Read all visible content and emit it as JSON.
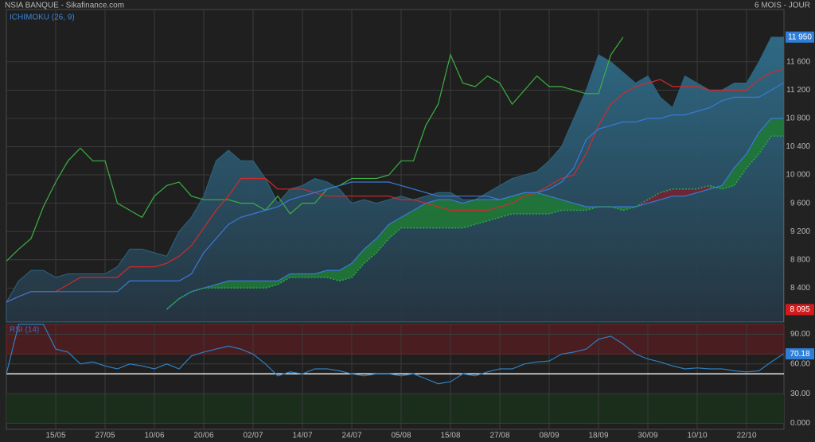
{
  "chart_data": [
    {
      "type": "ichimoku",
      "title": "NSIA BANQUE - Sikafinance.com",
      "period": "6 MOIS - JOUR",
      "label": "ICHIMOKU (26, 9)",
      "categories": [
        null,
        null,
        null,
        null,
        "15/05",
        null,
        null,
        null,
        "27/05",
        null,
        null,
        null,
        "10/06",
        null,
        null,
        null,
        "20/06",
        null,
        null,
        null,
        "02/07",
        null,
        null,
        null,
        "14/07",
        null,
        null,
        null,
        "24/07",
        null,
        null,
        null,
        "05/08",
        null,
        null,
        null,
        "15/08",
        null,
        null,
        null,
        "27/08",
        null,
        null,
        null,
        "08/09",
        null,
        null,
        null,
        "18/09",
        null,
        null,
        null,
        "30/09",
        null,
        null,
        null,
        "10/10",
        null,
        null,
        null,
        "22/10",
        null,
        null,
        null
      ],
      "ylim": [
        7920,
        12340
      ],
      "yticks": [
        {
          "value": 8400,
          "label": "8 400"
        },
        {
          "value": 8800,
          "label": "8 800"
        },
        {
          "value": 9200,
          "label": "9 200"
        },
        {
          "value": 9600,
          "label": "9 600"
        },
        {
          "value": 10000,
          "label": "10 000"
        },
        {
          "value": 10400,
          "label": "10 400"
        },
        {
          "value": 10800,
          "label": "10 800"
        },
        {
          "value": 11200,
          "label": "11 200"
        },
        {
          "value": 11600,
          "label": "11 600"
        }
      ],
      "grid": true,
      "area": {
        "color": "#2d6681",
        "values": [
          8200,
          8500,
          8650,
          8650,
          8550,
          8600,
          8600,
          8600,
          8600,
          8700,
          8950,
          8950,
          8900,
          8850,
          9200,
          9400,
          9700,
          10200,
          10350,
          10200,
          10200,
          9950,
          9600,
          9800,
          9850,
          9950,
          9900,
          9800,
          9600,
          9650,
          9600,
          9650,
          9700,
          9650,
          9700,
          9750,
          9750,
          9650,
          9650,
          9750,
          9850,
          9950,
          10000,
          10050,
          10200,
          10400,
          10800,
          11200,
          11700,
          11600,
          11450,
          11300,
          11400,
          11100,
          10950,
          11400,
          11300,
          11200,
          11200,
          11300,
          11300,
          11600,
          11950,
          11950
        ]
      },
      "cloud": {
        "up_color": "#1f7a34",
        "down_color": "#7a2030",
        "line_color": "#2ea84a",
        "a": [
          null,
          null,
          null,
          null,
          null,
          null,
          null,
          null,
          null,
          null,
          null,
          null,
          null,
          8100,
          8250,
          8350,
          8400,
          8450,
          8500,
          8500,
          8500,
          8500,
          8500,
          8600,
          8600,
          8600,
          8650,
          8650,
          8750,
          8950,
          9100,
          9300,
          9400,
          9500,
          9600,
          9650,
          9650,
          9600,
          9650,
          9650,
          9650,
          9700,
          9750,
          9750,
          9700,
          9650,
          9600,
          9550,
          9550,
          9550,
          9550,
          9550,
          9600,
          9650,
          9700,
          9700,
          9750,
          9800,
          9850,
          10100,
          10300,
          10600,
          10800,
          10800
        ],
        "b": [
          null,
          null,
          null,
          null,
          null,
          null,
          null,
          null,
          null,
          null,
          null,
          null,
          null,
          8100,
          8250,
          8350,
          8400,
          8400,
          8400,
          8400,
          8400,
          8400,
          8450,
          8550,
          8550,
          8550,
          8550,
          8500,
          8550,
          8750,
          8900,
          9100,
          9250,
          9250,
          9250,
          9250,
          9250,
          9250,
          9300,
          9350,
          9400,
          9450,
          9450,
          9450,
          9450,
          9500,
          9500,
          9500,
          9550,
          9550,
          9500,
          9550,
          9650,
          9750,
          9800,
          9800,
          9800,
          9850,
          9800,
          9850,
          10100,
          10300,
          10550,
          10550
        ]
      },
      "lines": [
        {
          "color": "#3cb043",
          "values": [
            8780,
            8950,
            9100,
            9550,
            9900,
            10200,
            10380,
            10200,
            10200,
            9600,
            9500,
            9400,
            9700,
            9850,
            9900,
            9700,
            9650,
            9650,
            9650,
            9600,
            9600,
            9500,
            9700,
            9450,
            9600,
            9600,
            9800,
            9850,
            9950,
            9950,
            9950,
            10000,
            10200,
            10200,
            10700,
            11000,
            11700,
            11300,
            11250,
            11400,
            11300,
            11000,
            11200,
            11400,
            11250,
            11250,
            11200,
            11150,
            11150,
            11700,
            11950,
            null,
            null,
            null,
            null,
            null,
            null,
            null,
            null,
            null,
            null,
            null,
            null,
            null
          ]
        },
        {
          "color": "#d42a2a",
          "values": [
            8200,
            8280,
            8350,
            8350,
            8350,
            8450,
            8550,
            8550,
            8550,
            8550,
            8700,
            8700,
            8700,
            8750,
            8850,
            9000,
            9250,
            9500,
            9700,
            9950,
            9950,
            9950,
            9800,
            9800,
            9800,
            9750,
            9700,
            9700,
            9700,
            9700,
            9700,
            9700,
            9650,
            9650,
            9600,
            9550,
            9500,
            9500,
            9500,
            9500,
            9550,
            9600,
            9700,
            9750,
            9850,
            9950,
            10000,
            10300,
            10700,
            11000,
            11150,
            11250,
            11300,
            11350,
            11250,
            11250,
            11250,
            11200,
            11200,
            11200,
            11200,
            11350,
            11450,
            11500
          ]
        },
        {
          "color": "#3a7ad8",
          "values": [
            8200,
            8280,
            8350,
            8350,
            8350,
            8350,
            8350,
            8350,
            8350,
            8350,
            8500,
            8500,
            8500,
            8500,
            8500,
            8600,
            8900,
            9100,
            9300,
            9400,
            9450,
            9500,
            9550,
            9650,
            9700,
            9750,
            9800,
            9850,
            9900,
            9900,
            9900,
            9900,
            9850,
            9800,
            9750,
            9700,
            9700,
            9700,
            9700,
            9700,
            9650,
            9700,
            9750,
            9750,
            9800,
            9900,
            10100,
            10500,
            10650,
            10700,
            10750,
            10750,
            10800,
            10800,
            10850,
            10850,
            10900,
            10950,
            11050,
            11100,
            11100,
            11100,
            11200,
            11300
          ]
        }
      ],
      "markers": [
        {
          "value": 11950,
          "label": "11 950",
          "color": "#2f7fd8"
        },
        {
          "value": 8095,
          "label": "8 095",
          "color": "#d41a1a"
        }
      ]
    },
    {
      "type": "rsi",
      "label": "RSI (14)",
      "ylim": [
        -6,
        100
      ],
      "yticks": [
        {
          "value": 0,
          "label": "0.000"
        },
        {
          "value": 30,
          "label": "30.00"
        },
        {
          "value": 60,
          "label": "60.00"
        },
        {
          "value": 90,
          "label": "90.00"
        }
      ],
      "grid": true,
      "color": "#2f7fc0",
      "overbought": 70,
      "oversold": 30,
      "midline": 50,
      "overbought_color": "#4a1d20",
      "oversold_color": "#1b2e1c",
      "values": [
        50,
        100,
        100,
        100,
        75,
        72,
        60,
        62,
        58,
        55,
        60,
        58,
        55,
        60,
        55,
        68,
        72,
        75,
        78,
        75,
        70,
        60,
        48,
        52,
        50,
        55,
        55,
        53,
        50,
        48,
        50,
        50,
        48,
        50,
        45,
        40,
        42,
        50,
        48,
        52,
        55,
        55,
        60,
        62,
        63,
        70,
        72,
        75,
        85,
        88,
        80,
        70,
        65,
        62,
        58,
        55,
        56,
        55,
        55,
        53,
        52,
        53,
        62,
        70.18
      ],
      "last": 70.18,
      "last_color": "#2f7fd8"
    }
  ]
}
